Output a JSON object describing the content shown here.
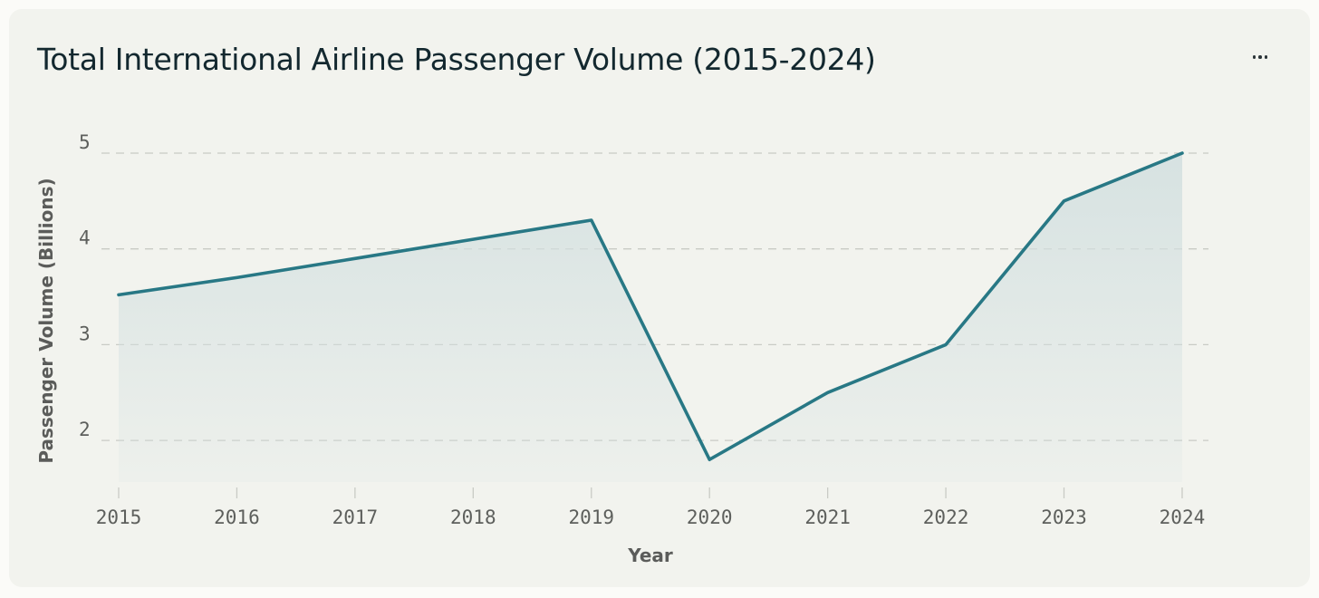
{
  "menu": {
    "icon": "more-horizontal-icon"
  },
  "colors": {
    "line": "#287885",
    "area_top": "#d3e0e0",
    "grid": "#c9cbc5",
    "card_bg": "#f2f3ee"
  },
  "chart_data": {
    "type": "area",
    "title": "Total International Airline Passenger Volume (2015-2024)",
    "xlabel": "Year",
    "ylabel": "Passenger Volume (Billions)",
    "x": [
      "2015",
      "2016",
      "2017",
      "2018",
      "2019",
      "2020",
      "2021",
      "2022",
      "2023",
      "2024"
    ],
    "series": [
      {
        "values": [
          3.52,
          3.7,
          3.9,
          4.1,
          4.3,
          1.8,
          2.5,
          3.0,
          4.5,
          5.0
        ]
      }
    ],
    "yticks": [
      "2",
      "3",
      "4",
      "5"
    ],
    "grid": true,
    "legend": "none"
  }
}
